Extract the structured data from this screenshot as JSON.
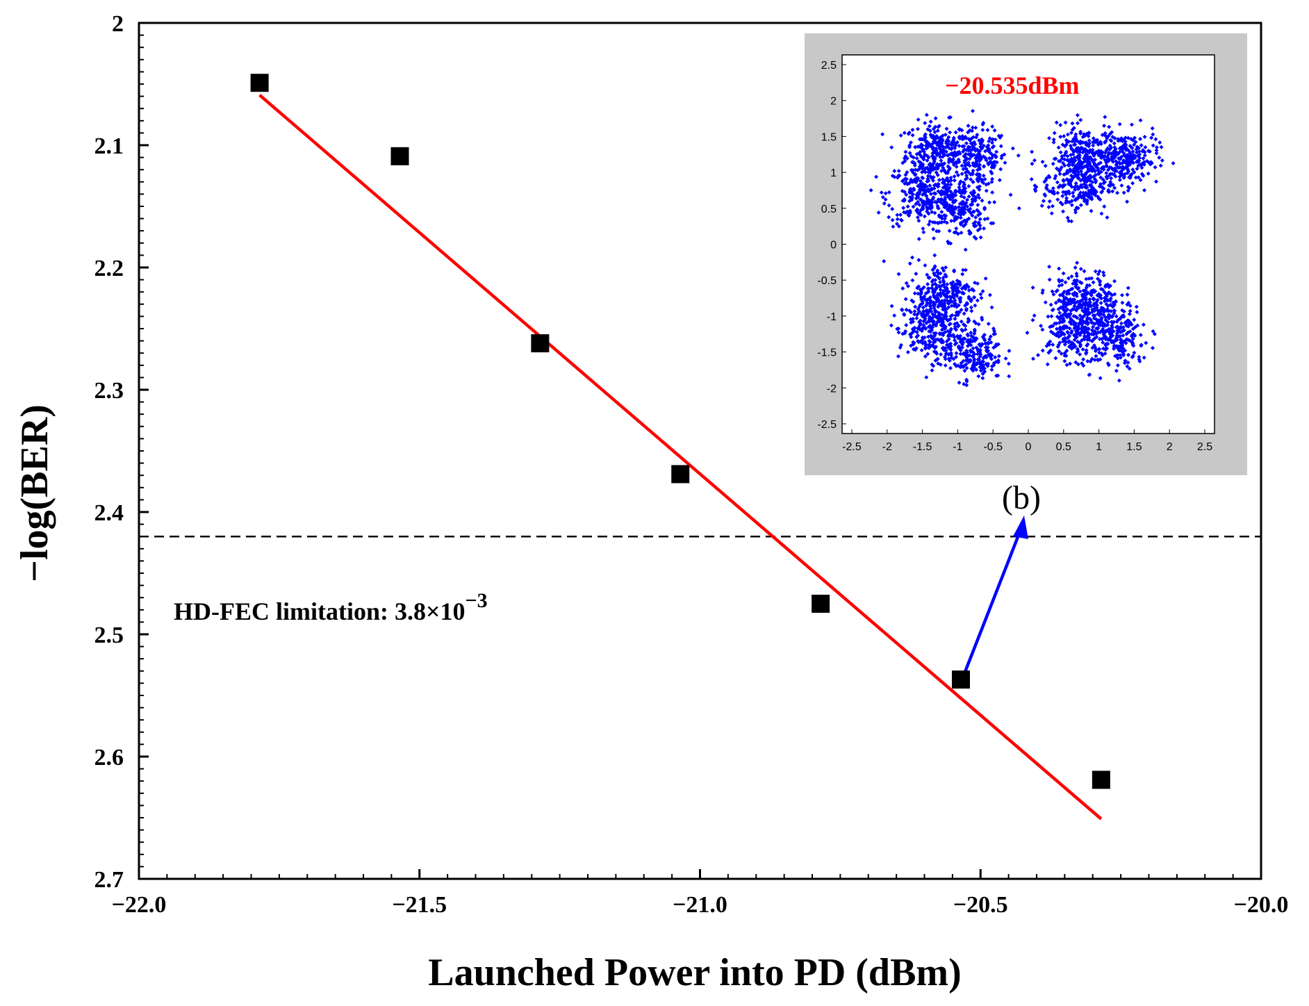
{
  "chart_data": {
    "type": "scatter",
    "xlabel": "Launched Power into PD (dBm)",
    "ylabel": "−log(BER)",
    "xlim": [
      -22.0,
      -20.0
    ],
    "ylim": [
      2.0,
      2.7
    ],
    "y_inverted": true,
    "x_ticks": [
      -22.0,
      -21.5,
      -21.0,
      -20.5,
      -20.0
    ],
    "x_tick_labels": [
      "−22.0",
      "−21.5",
      "−21.0",
      "−20.5",
      "−20.0"
    ],
    "y_ticks": [
      2.0,
      2.1,
      2.2,
      2.3,
      2.4,
      2.5,
      2.6,
      2.7
    ],
    "y_tick_labels": [
      "2",
      "2.1",
      "2.2",
      "2.3",
      "2.4",
      "2.5",
      "2.6",
      "2.7"
    ],
    "series": [
      {
        "name": "measured",
        "marker": "square",
        "color": "#000000",
        "x": [
          -21.785,
          -21.535,
          -21.285,
          -21.035,
          -20.785,
          -20.535,
          -20.285
        ],
        "y": [
          2.049,
          2.109,
          2.262,
          2.369,
          2.475,
          2.537,
          2.619
        ]
      }
    ],
    "fit_line": {
      "color": "#ff0000",
      "x": [
        -21.785,
        -20.285
      ],
      "y": [
        2.059,
        2.651
      ]
    },
    "threshold": {
      "y": 2.42,
      "style": "dashed",
      "label": "HD-FEC limitation: 3.8×10",
      "label_exponent": "−3"
    },
    "arrow": {
      "color": "#0000ff",
      "from_point": [
        -20.535,
        2.537
      ],
      "to_label": "(b)"
    },
    "inset": {
      "panel_label": "(b)",
      "title": "−20.535dBm",
      "type": "scatter",
      "point_color": "#0000ff",
      "xlim": [
        -2.5,
        2.5
      ],
      "ylim": [
        -2.5,
        2.5
      ],
      "x_tick_labels": [
        "-2.5",
        "-2",
        "-1.5",
        "-1",
        "-0.5",
        "0",
        "0.5",
        "1",
        "1.5",
        "2",
        "2.5"
      ],
      "y_tick_labels": [
        "2.5",
        "2",
        "1.5",
        "1",
        "0.5",
        "0",
        "-0.5",
        "-1",
        "-1.5",
        "-2",
        "-2.5"
      ],
      "clusters": [
        {
          "cx": -1.3,
          "cy": 1.3,
          "sx": 0.22,
          "sy": 0.2,
          "n": 280
        },
        {
          "cx": -0.7,
          "cy": 1.2,
          "sx": 0.2,
          "sy": 0.2,
          "n": 200
        },
        {
          "cx": -1.5,
          "cy": 0.7,
          "sx": 0.25,
          "sy": 0.22,
          "n": 250
        },
        {
          "cx": -1.0,
          "cy": 0.5,
          "sx": 0.22,
          "sy": 0.22,
          "n": 230
        },
        {
          "cx": 0.8,
          "cy": 1.2,
          "sx": 0.25,
          "sy": 0.22,
          "n": 300
        },
        {
          "cx": 1.4,
          "cy": 1.2,
          "sx": 0.22,
          "sy": 0.18,
          "n": 220
        },
        {
          "cx": 0.7,
          "cy": 0.8,
          "sx": 0.25,
          "sy": 0.2,
          "n": 220
        },
        {
          "cx": -1.2,
          "cy": -0.7,
          "sx": 0.25,
          "sy": 0.22,
          "n": 280
        },
        {
          "cx": -1.4,
          "cy": -1.2,
          "sx": 0.22,
          "sy": 0.22,
          "n": 230
        },
        {
          "cx": -0.8,
          "cy": -1.5,
          "sx": 0.22,
          "sy": 0.2,
          "n": 230
        },
        {
          "cx": 0.8,
          "cy": -0.8,
          "sx": 0.25,
          "sy": 0.22,
          "n": 300
        },
        {
          "cx": 1.2,
          "cy": -1.3,
          "sx": 0.25,
          "sy": 0.22,
          "n": 260
        },
        {
          "cx": 0.6,
          "cy": -1.2,
          "sx": 0.22,
          "sy": 0.2,
          "n": 180
        }
      ]
    }
  }
}
